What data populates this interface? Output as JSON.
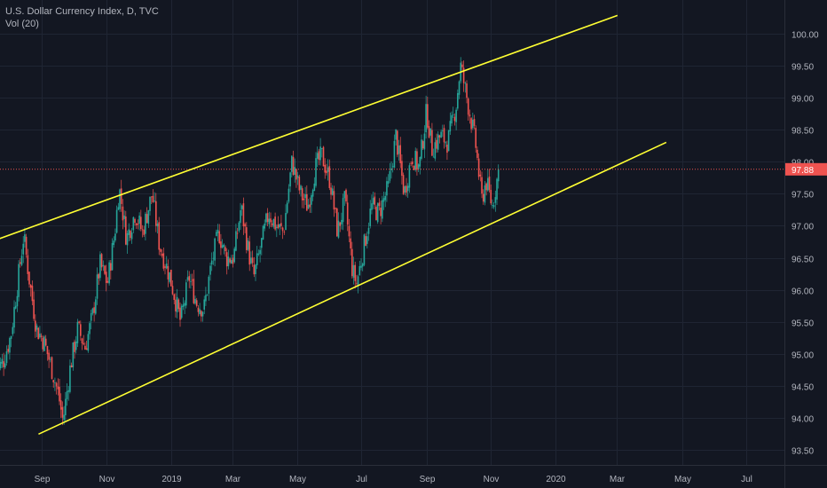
{
  "legend": {
    "symbol_line": "U.S. Dollar Currency Index, D, TVC",
    "volume_line": "Vol (20)"
  },
  "colors": {
    "background": "#131722",
    "grid": "#1f2533",
    "axis_text": "#b2b5be",
    "up_candle": "#26a69a",
    "down_candle": "#ef5350",
    "trendline": "#ffff33",
    "price_marker": "#ef5350"
  },
  "chart_data": {
    "type": "candlestick",
    "title": "U.S. Dollar Currency Index, D, TVC",
    "y_ticks": [
      "100.00",
      "99.50",
      "99.00",
      "98.50",
      "98.00",
      "97.50",
      "97.00",
      "96.50",
      "96.00",
      "95.50",
      "95.00",
      "94.50",
      "94.00",
      "93.50"
    ],
    "y_range": [
      93.27,
      100.52
    ],
    "x_ticks": [
      "Sep",
      "Nov",
      "2019",
      "Mar",
      "May",
      "Jul",
      "Sep",
      "Nov",
      "2020",
      "Mar",
      "May",
      "Jul"
    ],
    "last_price": "97.88",
    "grid": true,
    "trendlines": [
      {
        "name": "upper-channel",
        "from": {
          "date": "2018-07-20",
          "value": 96.78
        },
        "to": {
          "date": "2020-02-26",
          "value": 100.28
        }
      },
      {
        "name": "lower-channel",
        "from": {
          "date": "2018-08-29",
          "value": 93.75
        },
        "to": {
          "date": "2020-04-12",
          "value": 98.3
        }
      }
    ],
    "close_path": [
      [
        "2018-07-20",
        94.7
      ],
      [
        "2018-07-27",
        94.9
      ],
      [
        "2018-08-03",
        95.3
      ],
      [
        "2018-08-10",
        96.2
      ],
      [
        "2018-08-15",
        96.85
      ],
      [
        "2018-08-20",
        96.2
      ],
      [
        "2018-08-27",
        95.4
      ],
      [
        "2018-09-03",
        95.2
      ],
      [
        "2018-09-10",
        94.8
      ],
      [
        "2018-09-17",
        94.35
      ],
      [
        "2018-09-21",
        93.95
      ],
      [
        "2018-09-28",
        94.8
      ],
      [
        "2018-10-05",
        95.4
      ],
      [
        "2018-10-12",
        95.1
      ],
      [
        "2018-10-19",
        95.6
      ],
      [
        "2018-10-26",
        96.4
      ],
      [
        "2018-11-02",
        96.1
      ],
      [
        "2018-11-09",
        96.9
      ],
      [
        "2018-11-13",
        97.6
      ],
      [
        "2018-11-20",
        96.8
      ],
      [
        "2018-11-28",
        97.2
      ],
      [
        "2018-12-05",
        96.9
      ],
      [
        "2018-12-14",
        97.5
      ],
      [
        "2018-12-21",
        96.7
      ],
      [
        "2018-12-31",
        96.2
      ],
      [
        "2019-01-10",
        95.5
      ],
      [
        "2019-01-18",
        96.2
      ],
      [
        "2019-01-25",
        95.8
      ],
      [
        "2019-02-01",
        95.7
      ],
      [
        "2019-02-08",
        96.4
      ],
      [
        "2019-02-15",
        96.9
      ],
      [
        "2019-02-22",
        96.5
      ],
      [
        "2019-03-01",
        96.5
      ],
      [
        "2019-03-08",
        97.3
      ],
      [
        "2019-03-15",
        96.6
      ],
      [
        "2019-03-20",
        96.2
      ],
      [
        "2019-03-27",
        96.7
      ],
      [
        "2019-04-03",
        97.2
      ],
      [
        "2019-04-10",
        97.0
      ],
      [
        "2019-04-17",
        96.9
      ],
      [
        "2019-04-25",
        98.0
      ],
      [
        "2019-05-03",
        97.5
      ],
      [
        "2019-05-10",
        97.3
      ],
      [
        "2019-05-17",
        97.9
      ],
      [
        "2019-05-23",
        98.1
      ],
      [
        "2019-05-31",
        97.7
      ],
      [
        "2019-06-07",
        96.9
      ],
      [
        "2019-06-14",
        97.4
      ],
      [
        "2019-06-21",
        96.3
      ],
      [
        "2019-06-25",
        96.1
      ],
      [
        "2019-07-01",
        96.6
      ],
      [
        "2019-07-09",
        97.3
      ],
      [
        "2019-07-16",
        97.2
      ],
      [
        "2019-07-25",
        97.6
      ],
      [
        "2019-08-01",
        98.4
      ],
      [
        "2019-08-09",
        97.5
      ],
      [
        "2019-08-16",
        98.1
      ],
      [
        "2019-08-23",
        97.9
      ],
      [
        "2019-08-30",
        98.8
      ],
      [
        "2019-09-04",
        98.2
      ],
      [
        "2019-09-12",
        98.4
      ],
      [
        "2019-09-19",
        98.3
      ],
      [
        "2019-09-27",
        98.9
      ],
      [
        "2019-10-01",
        99.5
      ],
      [
        "2019-10-08",
        98.9
      ],
      [
        "2019-10-15",
        98.3
      ],
      [
        "2019-10-21",
        97.4
      ],
      [
        "2019-10-25",
        97.7
      ],
      [
        "2019-10-31",
        97.3
      ],
      [
        "2019-11-06",
        97.88
      ]
    ]
  }
}
